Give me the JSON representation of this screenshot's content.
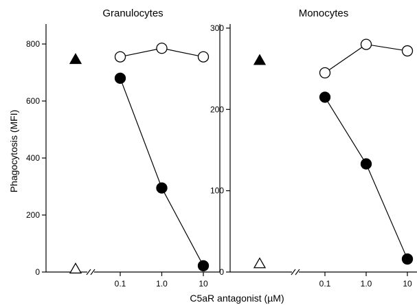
{
  "chart_data": [
    {
      "type": "scatter",
      "title": "Granulocytes",
      "ylabel": "Phagocytosis (MFI)",
      "ylim": [
        0,
        870
      ],
      "yticks": [
        0,
        200,
        400,
        600,
        800
      ],
      "xscale": "log",
      "xticks": [
        0.1,
        1,
        10
      ],
      "xtick_labels": [
        "0.1",
        "1.0",
        "10"
      ],
      "axis_break": true,
      "series": [
        {
          "marker": "open-circle",
          "connected": true,
          "x": [
            0.1,
            1,
            10
          ],
          "y": [
            755,
            785,
            755
          ]
        },
        {
          "marker": "filled-circle",
          "connected": true,
          "x": [
            0.1,
            1,
            10
          ],
          "y": [
            680,
            295,
            22
          ]
        }
      ],
      "controls": [
        {
          "marker": "filled-triangle",
          "y": 745
        },
        {
          "marker": "open-triangle",
          "y": 10
        }
      ]
    },
    {
      "type": "scatter",
      "title": "Monocytes",
      "ylim": [
        0,
        305
      ],
      "yticks": [
        0,
        100,
        200,
        300
      ],
      "xscale": "log",
      "xticks": [
        0.1,
        1,
        10
      ],
      "xtick_labels": [
        "0.1",
        "1.0",
        "10"
      ],
      "axis_break": true,
      "series": [
        {
          "marker": "open-circle",
          "connected": true,
          "x": [
            0.1,
            1,
            10
          ],
          "y": [
            245,
            280,
            272
          ]
        },
        {
          "marker": "filled-circle",
          "connected": true,
          "x": [
            0.1,
            1,
            10
          ],
          "y": [
            215,
            133,
            16
          ]
        }
      ],
      "controls": [
        {
          "marker": "filled-triangle",
          "y": 260
        },
        {
          "marker": "open-triangle",
          "y": 10
        }
      ]
    }
  ],
  "shared_xlabel": "C5aR antagonist (µM)"
}
